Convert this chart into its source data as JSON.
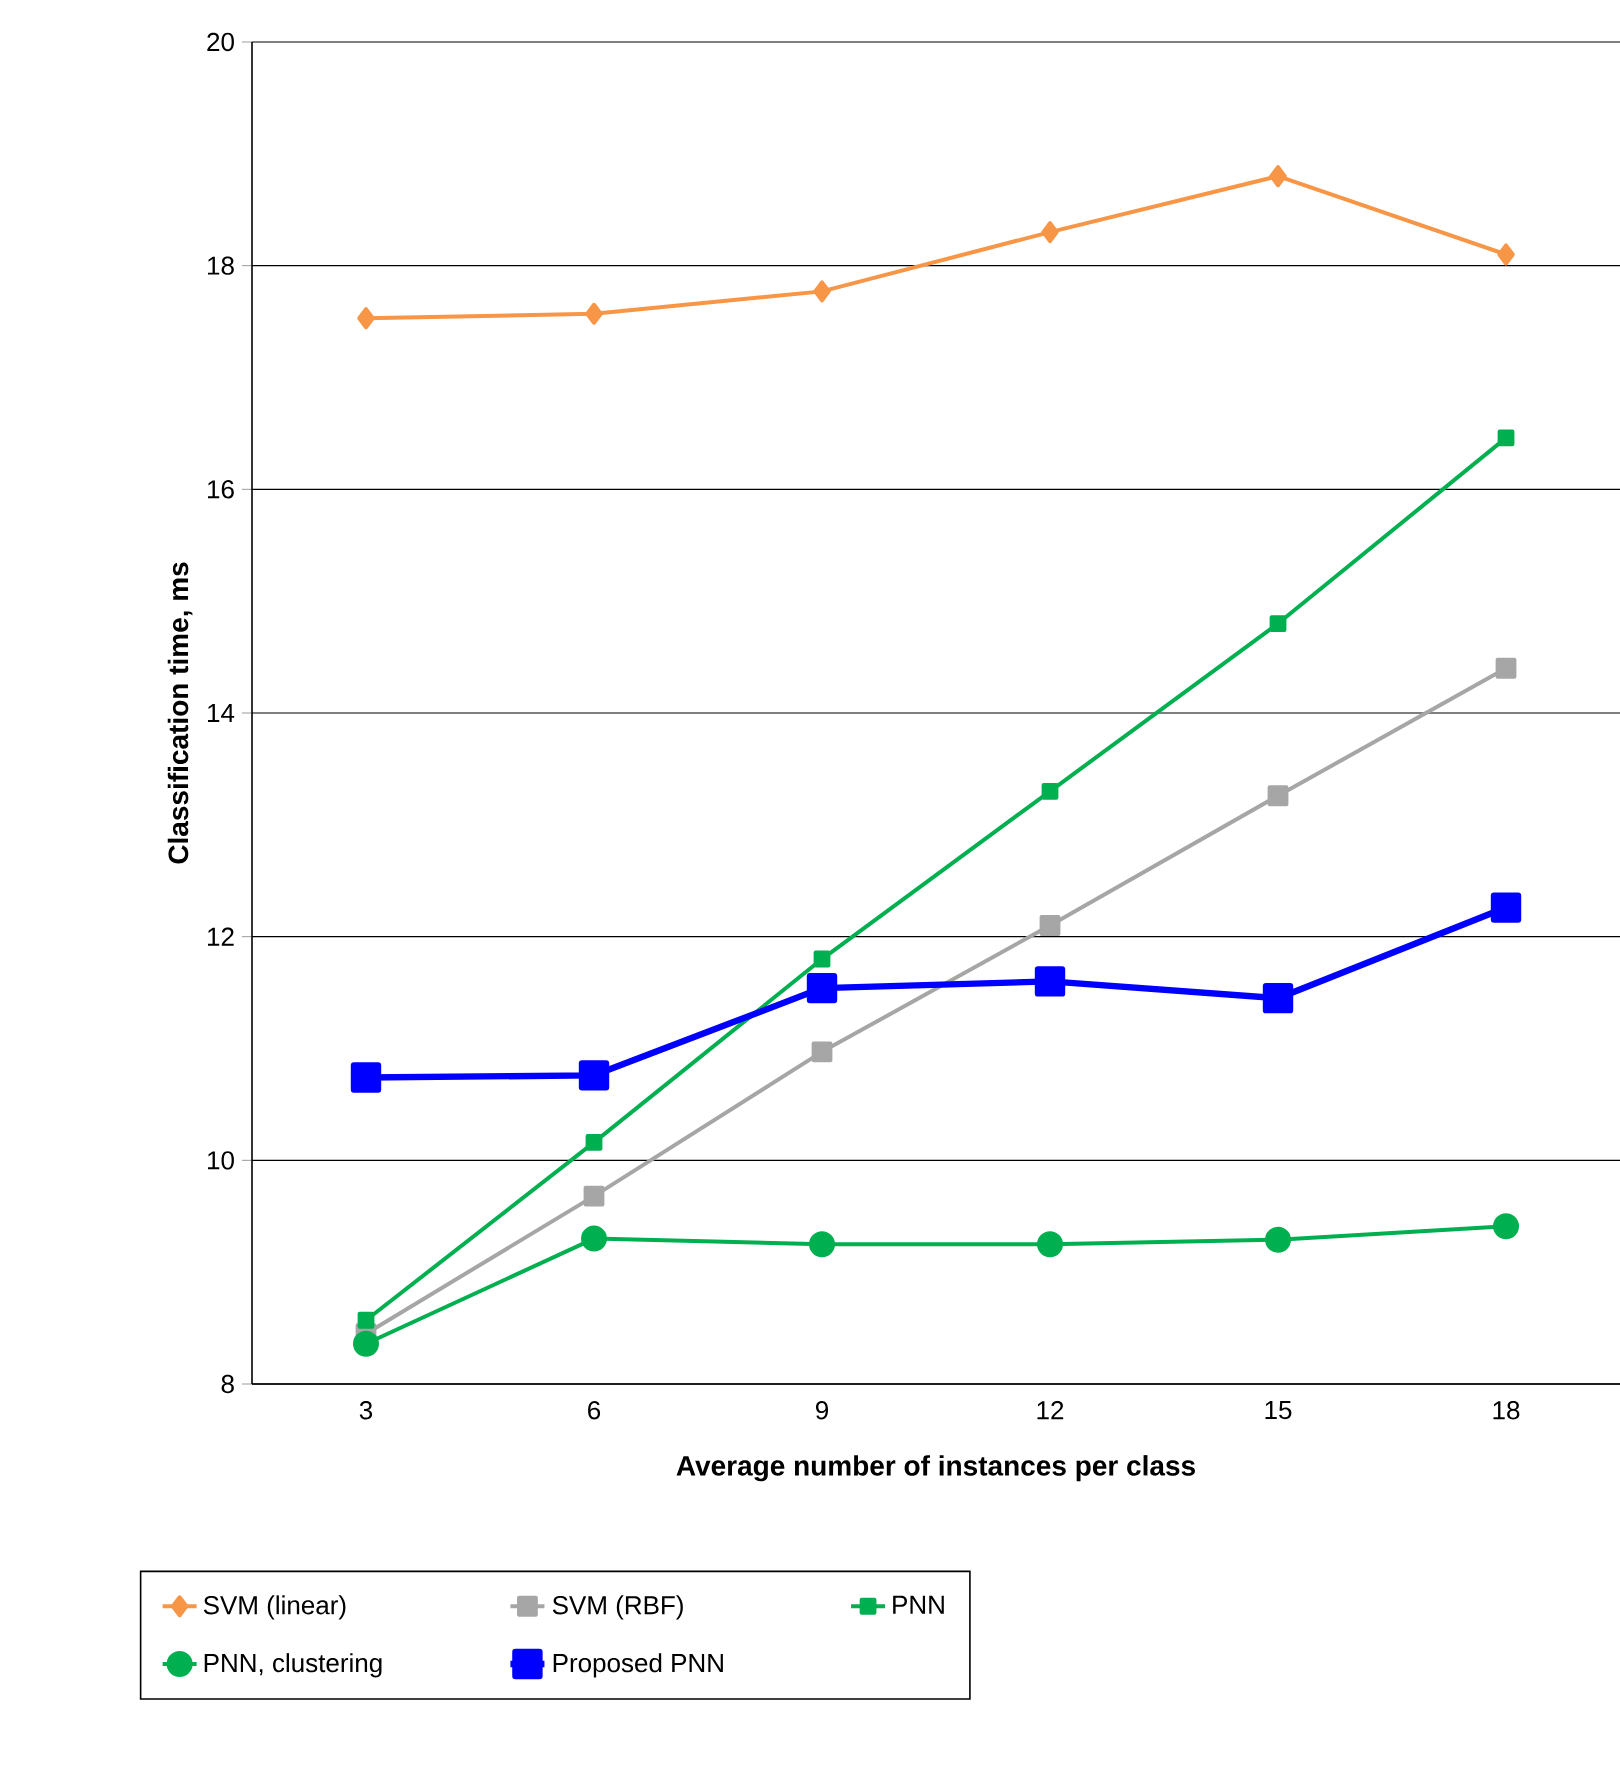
{
  "chart_data": {
    "type": "line",
    "xlabel": "Average number of instances per class",
    "ylabel": "Classification time, ms",
    "categories": [
      "3",
      "6",
      "9",
      "12",
      "15",
      "18"
    ],
    "ylim": [
      8,
      20
    ],
    "yticks": [
      8,
      10,
      12,
      14,
      16,
      18,
      20
    ],
    "grid": "y",
    "legend": "bottom",
    "series": [
      {
        "name": "SVM (linear)",
        "color": "#f79646",
        "marker": "diamond",
        "values": [
          17.53,
          17.57,
          17.77,
          18.3,
          18.8,
          18.1
        ]
      },
      {
        "name": "SVM (RBF)",
        "color": "#a6a6a6",
        "marker": "square",
        "values": [
          8.45,
          9.68,
          10.97,
          12.1,
          13.26,
          14.4
        ]
      },
      {
        "name": "PNN",
        "color": "#00b050",
        "marker": "square",
        "values": [
          8.57,
          10.16,
          11.8,
          13.3,
          14.8,
          16.46
        ]
      },
      {
        "name": "PNN, clustering",
        "color": "#00b050",
        "marker": "circle",
        "values": [
          8.36,
          9.3,
          9.25,
          9.25,
          9.29,
          9.41
        ]
      },
      {
        "name": "Proposed PNN",
        "color": "#0000ff",
        "marker": "square",
        "values": [
          10.74,
          10.76,
          11.54,
          11.6,
          11.45,
          12.26
        ]
      }
    ]
  }
}
